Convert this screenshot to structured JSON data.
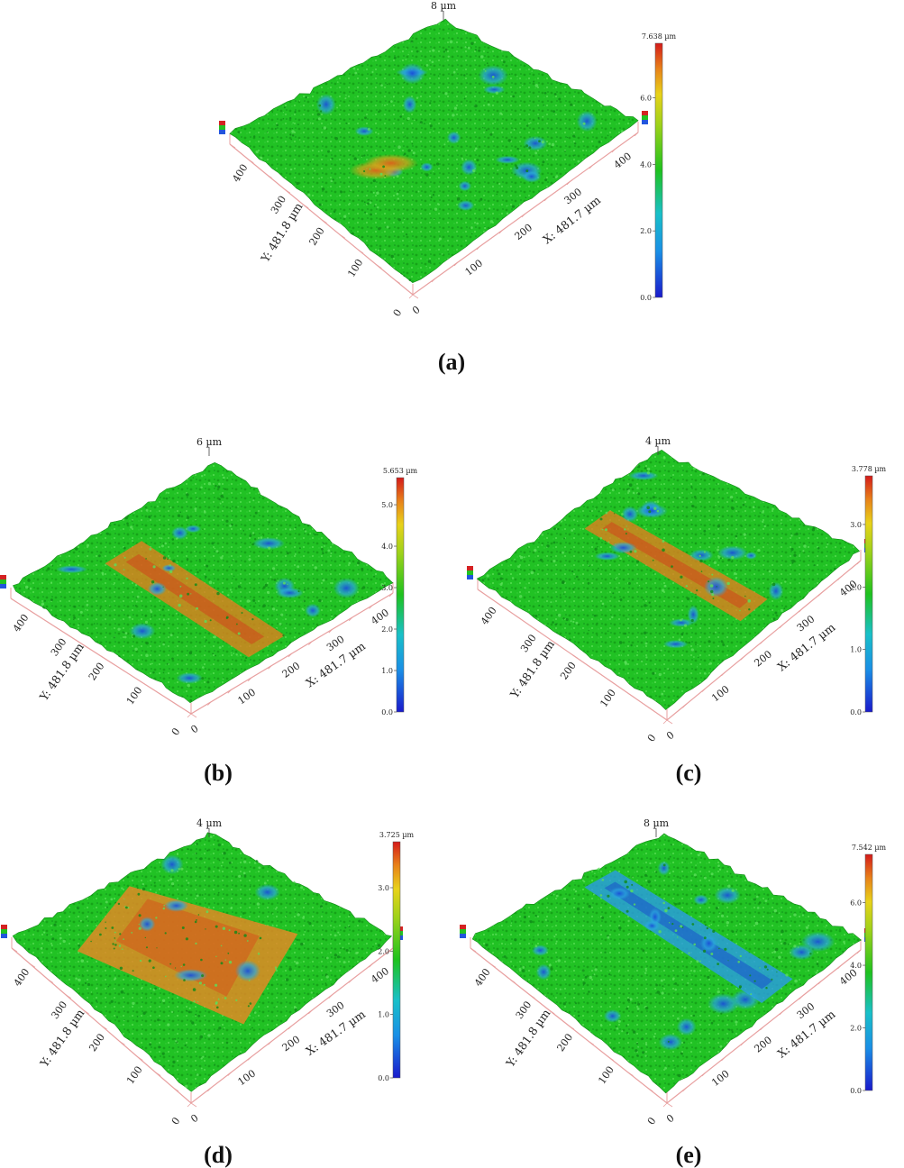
{
  "figure": {
    "panels": [
      {
        "label": "(a)",
        "z_top": "8 µm",
        "cbar_max_label": "7.638 µm",
        "cbar_ticks": [
          "6.0",
          "4.0",
          "2.0",
          "0.0"
        ],
        "y_axis_label": "Y: 481.8 µm",
        "x_axis_label": "X: 481.7 µm",
        "y_ticks": [
          "400",
          "300",
          "200",
          "100",
          "0"
        ],
        "x_ticks": [
          "0",
          "100",
          "200",
          "300",
          "400"
        ],
        "dominant_surface": "green with blue pits and orange ridge"
      },
      {
        "label": "(b)",
        "z_top": "6 µm",
        "cbar_max_label": "5.653 µm",
        "cbar_ticks": [
          "5.0",
          "4.0",
          "3.0",
          "2.0",
          "1.0",
          "0.0"
        ],
        "y_axis_label": "Y: 481.8 µm",
        "x_axis_label": "X: 481.7 µm",
        "y_ticks": [
          "400",
          "300",
          "200",
          "100",
          "0"
        ],
        "x_ticks": [
          "0",
          "100",
          "200",
          "300",
          "400"
        ],
        "dominant_surface": "green with diagonal orange wear track"
      },
      {
        "label": "(c)",
        "z_top": "4 µm",
        "cbar_max_label": "3.778 µm",
        "cbar_ticks": [
          "3.0",
          "2.0",
          "1.0",
          "0.0"
        ],
        "y_axis_label": "Y: 481.8 µm",
        "x_axis_label": "X: 481.7 µm",
        "y_ticks": [
          "400",
          "300",
          "200",
          "100",
          "0"
        ],
        "x_ticks": [
          "0",
          "100",
          "200",
          "300",
          "400"
        ],
        "dominant_surface": "green with orange diagonal band"
      },
      {
        "label": "(d)",
        "z_top": "4 µm",
        "cbar_max_label": "3.725 µm",
        "cbar_ticks": [
          "3.0",
          "2.0",
          "1.0",
          "0.0"
        ],
        "y_axis_label": "Y: 481.8 µm",
        "x_axis_label": "X: 481.7 µm",
        "y_ticks": [
          "400",
          "300",
          "200",
          "100",
          "0"
        ],
        "x_ticks": [
          "0",
          "100",
          "200",
          "300",
          "400"
        ],
        "dominant_surface": "orange plateau with green edges"
      },
      {
        "label": "(e)",
        "z_top": "8 µm",
        "cbar_max_label": "7.542 µm",
        "cbar_ticks": [
          "6.0",
          "4.0",
          "2.0",
          "0.0"
        ],
        "y_axis_label": "Y: 481.8 µm",
        "x_axis_label": "X: 481.7 µm",
        "y_ticks": [
          "400",
          "300",
          "200",
          "100",
          "0"
        ],
        "x_ticks": [
          "0",
          "100",
          "200",
          "300",
          "400"
        ],
        "dominant_surface": "green with blue diagonal band"
      }
    ],
    "colors": {
      "green": "#1ec21e",
      "blue": "#1f8fe0",
      "orange": "#e07a1a",
      "red": "#d42222",
      "grid": "#e8a0a0"
    }
  }
}
